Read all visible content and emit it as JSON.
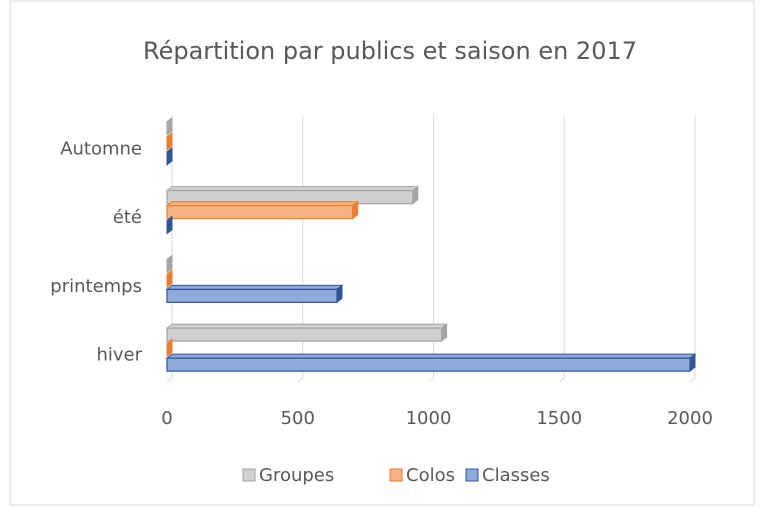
{
  "chart_data": {
    "type": "bar",
    "orientation": "horizontal",
    "title": "Répartition par publics et saison en 2017",
    "categories": [
      "hiver",
      "printemps",
      "été",
      "Automne"
    ],
    "series": [
      {
        "name": "Groupes",
        "color": "#d0d0d0",
        "edge": "#a5a5a5",
        "values": [
          1050,
          0,
          940,
          0
        ]
      },
      {
        "name": "Colos",
        "color": "#f4b183",
        "edge": "#ed7d31",
        "values": [
          0,
          0,
          710,
          0
        ]
      },
      {
        "name": "Classes",
        "color": "#8faadc",
        "edge": "#2f5597",
        "values": [
          2000,
          650,
          0,
          0
        ]
      }
    ],
    "xlim": [
      0,
      2000
    ],
    "xticks": [
      0,
      500,
      1000,
      1500,
      2000
    ],
    "grid": true,
    "legend": "bottom"
  }
}
